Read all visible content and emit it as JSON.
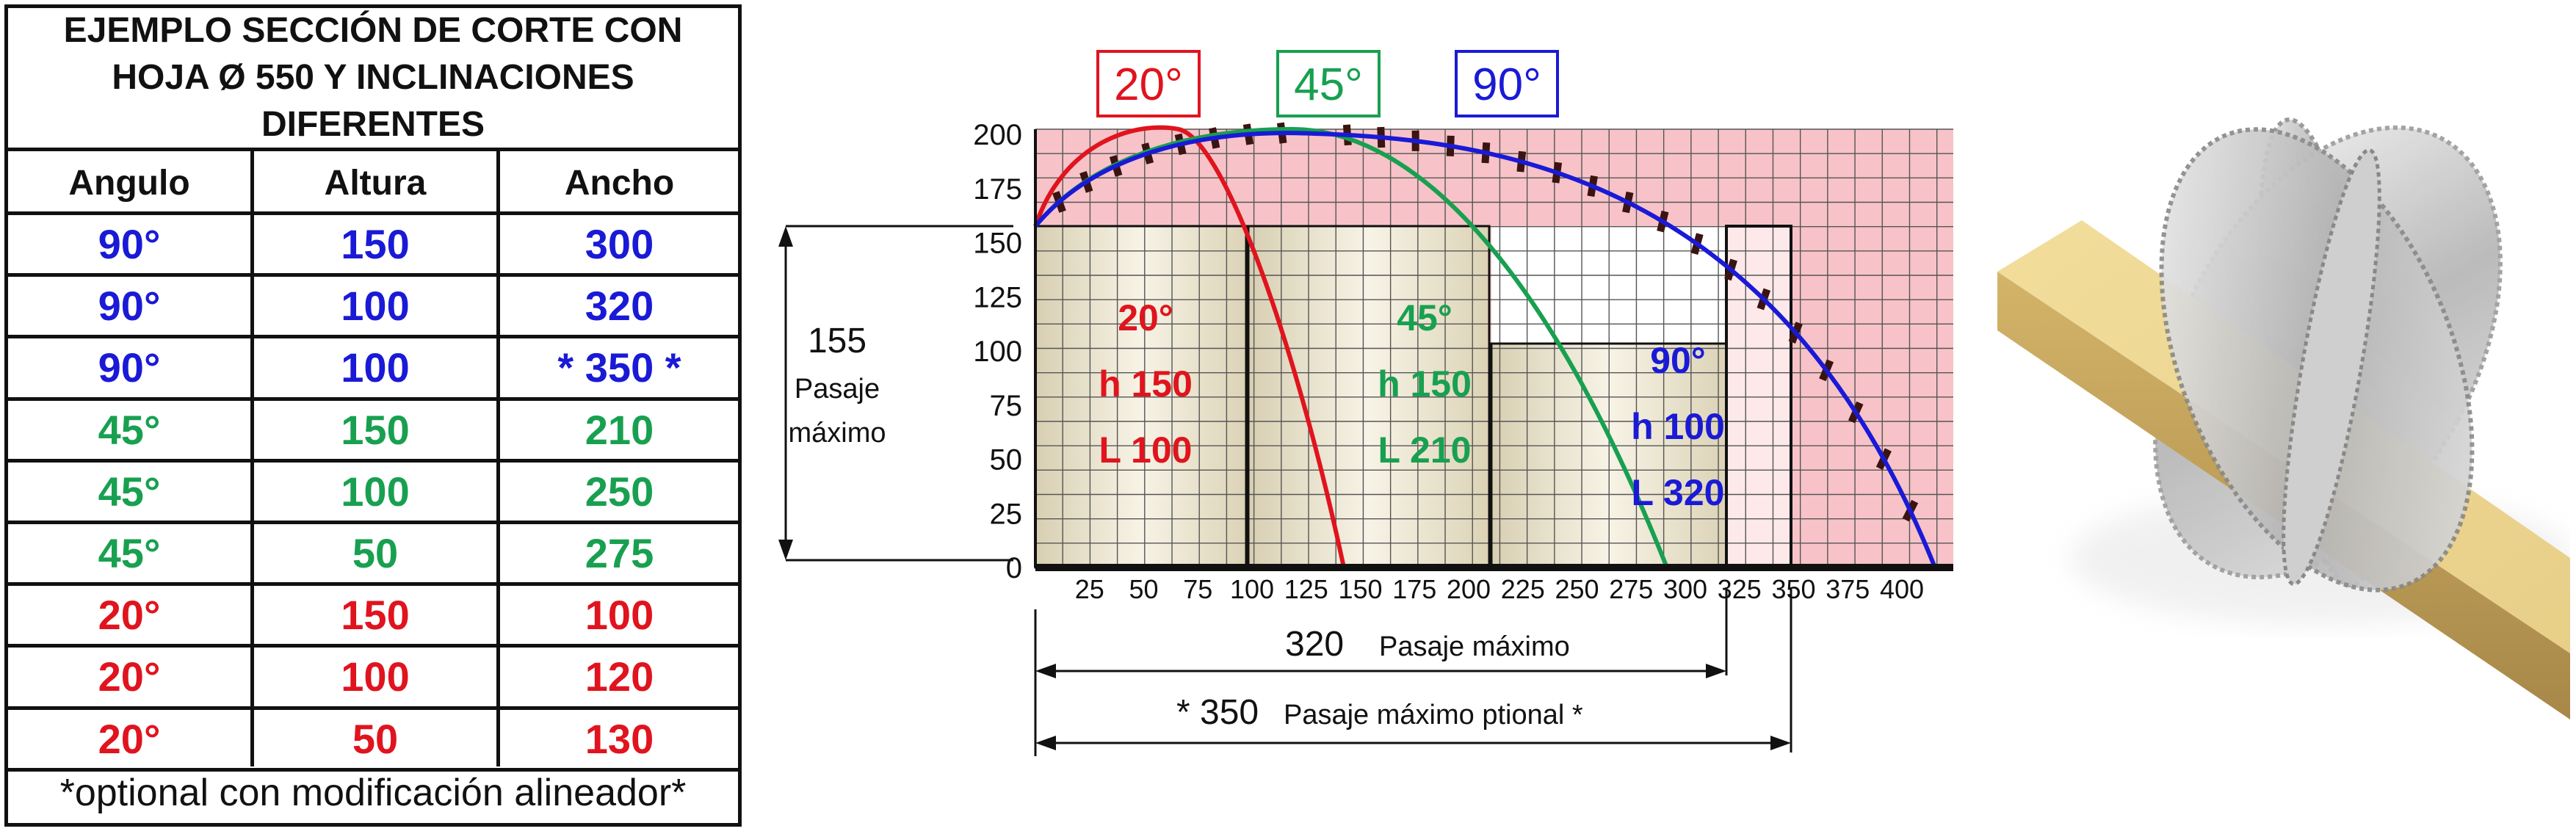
{
  "table": {
    "title_lines": [
      "EJEMPLO SECCIÓN DE CORTE CON",
      "HOJA Ø 550 Y INCLINACIONES",
      "DIFERENTES"
    ],
    "headers": [
      "Angulo",
      "Altura",
      "Ancho"
    ],
    "rows": [
      {
        "angle": "90°",
        "height": "150",
        "width": "300",
        "color": "#1a1ad6"
      },
      {
        "angle": "90°",
        "height": "100",
        "width": "320",
        "color": "#1a1ad6"
      },
      {
        "angle": "90°",
        "height": "100",
        "width": "* 350 *",
        "color": "#1a1ad6"
      },
      {
        "angle": "45°",
        "height": "150",
        "width": "210",
        "color": "#18a050"
      },
      {
        "angle": "45°",
        "height": "100",
        "width": "250",
        "color": "#18a050"
      },
      {
        "angle": "45°",
        "height": "50",
        "width": "275",
        "color": "#18a050"
      },
      {
        "angle": "20°",
        "height": "150",
        "width": "100",
        "color": "#e0141e"
      },
      {
        "angle": "20°",
        "height": "100",
        "width": "120",
        "color": "#e0141e"
      },
      {
        "angle": "20°",
        "height": "50",
        "width": "130",
        "color": "#e0141e"
      }
    ],
    "footer": "*optional con modificación alineador*"
  },
  "diagram": {
    "y_ticks": [
      "0",
      "25",
      "50",
      "75",
      "100",
      "125",
      "150",
      "175",
      "200"
    ],
    "x_ticks": [
      "25",
      "50",
      "75",
      "100",
      "125",
      "150",
      "175",
      "200",
      "225",
      "250",
      "275",
      "300",
      "325",
      "350",
      "375",
      "400"
    ],
    "legend": [
      "20°",
      "45°",
      "90°"
    ],
    "passage_height_value": "155",
    "passage_height_label_lines": [
      "Pasaje",
      "máximo"
    ],
    "width_320_value": "320",
    "width_320_label": "Pasaje máximo",
    "width_350_value": "* 350",
    "width_350_label": "Pasaje máximo ptional *",
    "cut_labels": {
      "a20": {
        "angle": "20°",
        "h": "h 150",
        "l": "L 100"
      },
      "a45": {
        "angle": "45°",
        "h": "h 150",
        "l": "L 210"
      },
      "a90": {
        "angle": "90°",
        "h": "h 100",
        "l": "L 320"
      }
    },
    "colors": {
      "red": "#e0141e",
      "green": "#18a050",
      "blue": "#1a1ad6",
      "background": "#f7c3c8",
      "grid": "#555555"
    }
  },
  "product_image": {
    "icon": "saw-blades-on-wood-beam-illustration"
  }
}
